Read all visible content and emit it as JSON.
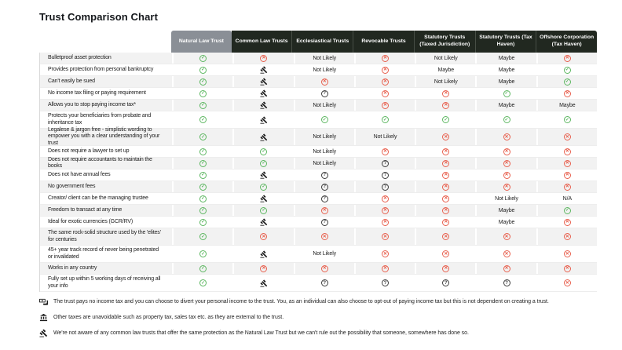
{
  "chart_data": {
    "type": "table",
    "title": "Trust Comparison Chart",
    "columns": [
      "Natural Law Trust",
      "Common Law Trusts",
      "Ecclesiastical Trusts",
      "Revocable Trusts",
      "Statutory Trusts (Taxed Jurisdiction)",
      "Statutory Trusts (Tax Haven)",
      "Offshore Corporation (Tax Haven)"
    ],
    "symbol_legend": {
      "yes": "green circled check = yes",
      "no": "red circled cross = no",
      "q": "circled question mark = uncertain",
      "gavel": "gavel icon = refers to common-law footnote"
    },
    "rows": [
      {
        "label": "Bulletproof asset protection",
        "cells": [
          "yes",
          "no",
          "Not Likely",
          "no",
          "Not Likely",
          "Maybe",
          "no"
        ]
      },
      {
        "label": "Provides protection from personal bankruptcy",
        "cells": [
          "yes",
          "gavel",
          "Not Likely",
          "no",
          "Maybe",
          "Maybe",
          "yes"
        ]
      },
      {
        "label": "Can't easily be sued",
        "cells": [
          "yes",
          "gavel",
          "no",
          "no",
          "Not Likely",
          "Maybe",
          "yes"
        ]
      },
      {
        "label": "No income tax filing or paying requirement",
        "cells": [
          "yes",
          "gavel",
          "q",
          "no",
          "no",
          "yes",
          "no"
        ]
      },
      {
        "label": "Allows you to stop paying income tax*",
        "cells": [
          "yes",
          "gavel",
          "Not Likely",
          "no",
          "no",
          "Maybe",
          "Maybe"
        ]
      },
      {
        "label": "Protects your beneficiaries from probate and inheritance tax",
        "cells": [
          "yes",
          "gavel",
          "yes",
          "yes",
          "yes",
          "yes",
          "yes"
        ]
      },
      {
        "label": "Legalese & jargon free - simplistic wording to empower you with a clear understanding of your trust",
        "cells": [
          "yes",
          "gavel",
          "Not Likely",
          "Not Likely",
          "no",
          "no",
          "no"
        ]
      },
      {
        "label": "Does not require a lawyer to set up",
        "cells": [
          "yes",
          "yes",
          "Not Likely",
          "no",
          "no",
          "no",
          "no"
        ]
      },
      {
        "label": "Does not require accountants to maintain the books",
        "cells": [
          "yes",
          "yes",
          "Not Likely",
          "q",
          "no",
          "no",
          "no"
        ]
      },
      {
        "label": "Does not have annual fees",
        "cells": [
          "yes",
          "gavel",
          "q",
          "q",
          "no",
          "no",
          "no"
        ]
      },
      {
        "label": "No government fees",
        "cells": [
          "yes",
          "yes",
          "q",
          "q",
          "no",
          "no",
          "no"
        ]
      },
      {
        "label": "Creator/ client can be the managing trustee",
        "cells": [
          "yes",
          "gavel",
          "q",
          "no",
          "no",
          "Not Likely",
          "N/A"
        ]
      },
      {
        "label": "Freedom to transact at any time",
        "cells": [
          "yes",
          "yes",
          "no",
          "no",
          "no",
          "Maybe",
          "yes"
        ]
      },
      {
        "label": "Ideal for exotic currencies (GCR/RV)",
        "cells": [
          "yes",
          "gavel",
          "q",
          "no",
          "no",
          "Maybe",
          "no"
        ]
      },
      {
        "label": "The same rock-solid structure used by the 'elites' for centuries",
        "cells": [
          "yes",
          "no",
          "no",
          "no",
          "no",
          "no",
          "no"
        ]
      },
      {
        "label": "45+ year track record of never being penetrated or invalidated",
        "cells": [
          "yes",
          "gavel",
          "Not Likely",
          "no",
          "no",
          "no",
          "no"
        ]
      },
      {
        "label": "Works in any country",
        "cells": [
          "yes",
          "no",
          "no",
          "no",
          "no",
          "no",
          "no"
        ]
      },
      {
        "label": "Fully set up within 5 working days of receiving all your info",
        "cells": [
          "yes",
          "gavel",
          "q",
          "q",
          "q",
          "q",
          "no"
        ]
      }
    ]
  },
  "footnotes": [
    {
      "icon": "money-icon",
      "text": "The trust pays no income tax and you can choose to divert your personal income to the trust. You, as an individual can also choose to opt-out of paying income tax but this is not dependent on creating a trust."
    },
    {
      "icon": "building-icon",
      "text": "Other taxes are unavoidable such as property tax, sales tax etc. as they are external to the trust."
    },
    {
      "icon": "gavel-icon",
      "text": "We're not aware of any common law trusts that offer the same protection as the Natural Law Trust but we can't rule out the possibility that someone, somewhere has done so."
    }
  ],
  "colors": {
    "header_dark": "#212820",
    "header_gray": "#8a8f96",
    "row_stripe": "#f2f2f2",
    "positive_green": "#5db761",
    "negative_red": "#e8604e",
    "neutral_dark": "#3e3e3e"
  }
}
